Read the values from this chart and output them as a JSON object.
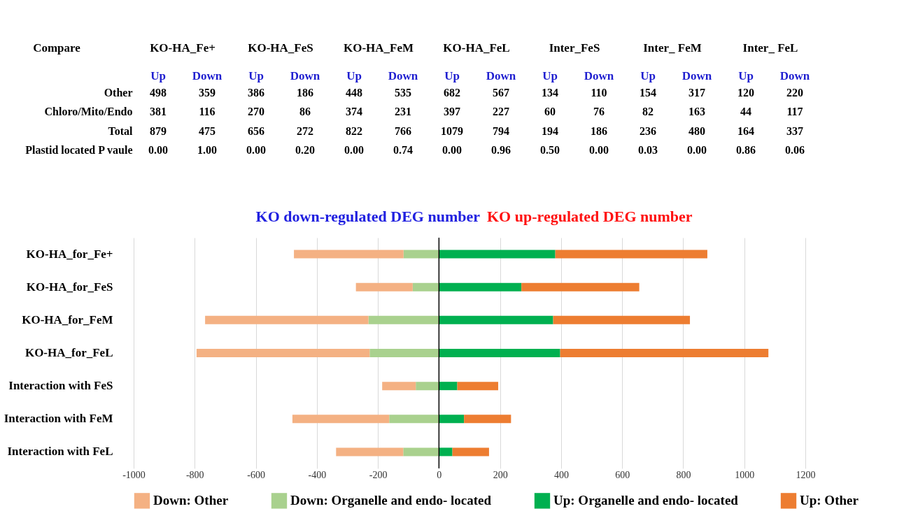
{
  "chart_data": [
    {
      "type": "other",
      "ylabel": "Compare",
      "annotations": [
        "KO-HA_Fe+",
        "KO-HA_FeS",
        "KO-HA_FeM",
        "KO-HA_FeL",
        "Inter_FeS",
        "Inter_ FeM",
        "Inter_ FeL"
      ],
      "categories": [
        "Up",
        "Down",
        "Up",
        "Down",
        "Up",
        "Down",
        "Up",
        "Down",
        "Up",
        "Down",
        "Up",
        "Down",
        "Up",
        "Down"
      ],
      "y_categories": [
        "Other",
        "Chloro/Mito/Endo",
        "Total",
        "Plastid located P vaule"
      ],
      "cell_labels": [
        [
          "498",
          "359",
          "386",
          "186",
          "448",
          "535",
          "682",
          "567",
          "134",
          "110",
          "154",
          "317",
          "120",
          "220"
        ],
        [
          "381",
          "116",
          "270",
          "86",
          "374",
          "231",
          "397",
          "227",
          "60",
          "76",
          "82",
          "163",
          "44",
          "117"
        ],
        [
          "879",
          "475",
          "656",
          "272",
          "822",
          "766",
          "1079",
          "794",
          "194",
          "186",
          "236",
          "480",
          "164",
          "337"
        ],
        [
          "0.00",
          "1.00",
          "0.00",
          "0.20",
          "0.00",
          "0.74",
          "0.00",
          "0.96",
          "0.50",
          "0.00",
          "0.03",
          "0.00",
          "0.86",
          "0.06"
        ]
      ]
    },
    {
      "type": "bar",
      "orientation": "horizontal",
      "stacked": true,
      "title": "KO down-regulated  DEG number",
      "subtitle": "KO up-regulated DEG number",
      "categories": [
        "KO-HA_for_Fe+",
        "KO-HA_for_FeS",
        "KO-HA_for_FeM",
        "KO-HA_for_FeL",
        "Interaction with FeS",
        "Interaction with FeM",
        "Interaction with FeL"
      ],
      "series": [
        {
          "name": "Down: Organelle and endo- located",
          "color": "#a9d18e",
          "values": [
            -116,
            -86,
            -231,
            -227,
            -76,
            -163,
            -117
          ]
        },
        {
          "name": "Down: Other",
          "color": "#f4b183",
          "values": [
            -359,
            -186,
            -535,
            -567,
            -110,
            -317,
            -220
          ]
        },
        {
          "name": "Up: Organelle and endo- located",
          "color": "#00b050",
          "values": [
            381,
            270,
            374,
            397,
            60,
            82,
            44
          ]
        },
        {
          "name": "Up: Other",
          "color": "#ed7d31",
          "values": [
            498,
            386,
            448,
            682,
            134,
            154,
            120
          ]
        }
      ],
      "xlim": [
        -1000,
        1200
      ],
      "xticks": [
        -1000,
        -800,
        -600,
        -400,
        -200,
        0,
        200,
        400,
        600,
        800,
        1000,
        1200
      ],
      "grid": "x",
      "legend": "bottom",
      "ref_lines": [
        {
          "axis": "x",
          "value": 0,
          "color": "#000000"
        }
      ]
    }
  ]
}
